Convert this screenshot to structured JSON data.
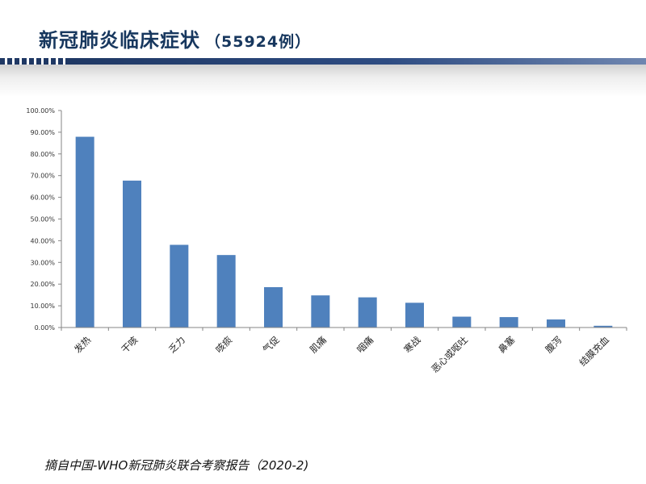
{
  "slide": {
    "title": "新冠肺炎临床症状",
    "case_count": "（55924例）",
    "source": "摘自中国-WHO新冠肺炎联合考察报告（2020-2)"
  },
  "colors": {
    "title": "#17375e",
    "bar": "#4f81bd",
    "axis": "#868686",
    "header_bar": "#1f3864"
  },
  "chart_data": {
    "type": "bar",
    "title": "",
    "xlabel": "",
    "ylabel": "",
    "categories": [
      "发热",
      "干咳",
      "乏力",
      "咳痰",
      "气促",
      "肌痛",
      "咽痛",
      "寒战",
      "恶心或呕吐",
      "鼻塞",
      "腹泻",
      "结膜充血"
    ],
    "values": [
      87.9,
      67.7,
      38.1,
      33.4,
      18.6,
      14.8,
      13.9,
      11.4,
      5.0,
      4.8,
      3.7,
      0.8
    ],
    "y_unit": "%",
    "ylim": [
      0,
      100
    ],
    "y_ticks": [
      "0.00%",
      "10.00%",
      "20.00%",
      "30.00%",
      "40.00%",
      "50.00%",
      "60.00%",
      "70.00%",
      "80.00%",
      "90.00%",
      "100.00%"
    ],
    "grid": false,
    "legend": "none"
  }
}
